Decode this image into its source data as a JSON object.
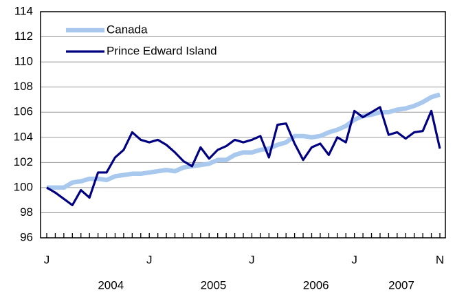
{
  "chart_data": {
    "type": "line",
    "categories": [
      "J",
      null,
      null,
      null,
      null,
      null,
      null,
      null,
      null,
      null,
      null,
      null,
      "J",
      null,
      null,
      null,
      null,
      null,
      null,
      null,
      null,
      null,
      null,
      null,
      "J",
      null,
      null,
      null,
      null,
      null,
      null,
      null,
      null,
      null,
      null,
      null,
      "J",
      null,
      null,
      null,
      null,
      null,
      null,
      null,
      null,
      null,
      "N"
    ],
    "x_group_labels": [
      "2004",
      "2005",
      "2006",
      "2007"
    ],
    "series": [
      {
        "name": "Canada",
        "color": "#a9c8ee",
        "values": [
          100,
          100,
          100,
          100.4,
          100.5,
          100.7,
          100.7,
          100.6,
          100.9,
          101.0,
          101.1,
          101.1,
          101.2,
          101.3,
          101.4,
          101.3,
          101.6,
          101.7,
          101.8,
          101.9,
          102.2,
          102.2,
          102.6,
          102.8,
          102.8,
          103.0,
          103.1,
          103.4,
          103.6,
          104.1,
          104.1,
          104.0,
          104.1,
          104.4,
          104.6,
          104.9,
          105.4,
          105.7,
          105.8,
          106.0,
          106.0,
          106.2,
          106.3,
          106.5,
          106.8,
          107.2,
          107.4
        ]
      },
      {
        "name": "Prince Edward Island",
        "color": "#000080",
        "values": [
          100,
          99.6,
          99.1,
          98.6,
          99.8,
          99.2,
          101.2,
          101.2,
          102.4,
          103.0,
          104.4,
          103.8,
          103.6,
          103.8,
          103.4,
          102.8,
          102.1,
          101.7,
          103.2,
          102.3,
          103.0,
          103.3,
          103.8,
          103.6,
          103.8,
          104.1,
          102.4,
          105.0,
          105.1,
          103.5,
          102.2,
          103.2,
          103.5,
          102.6,
          104.0,
          103.6,
          106.1,
          105.6,
          106.0,
          106.4,
          104.2,
          104.4,
          103.9,
          104.4,
          104.5,
          106.1,
          103.1
        ]
      }
    ],
    "ylim": [
      96,
      114
    ],
    "yticks": [
      96,
      98,
      100,
      102,
      104,
      106,
      108,
      110,
      112,
      114
    ],
    "grid": true,
    "legend": "upper left"
  }
}
